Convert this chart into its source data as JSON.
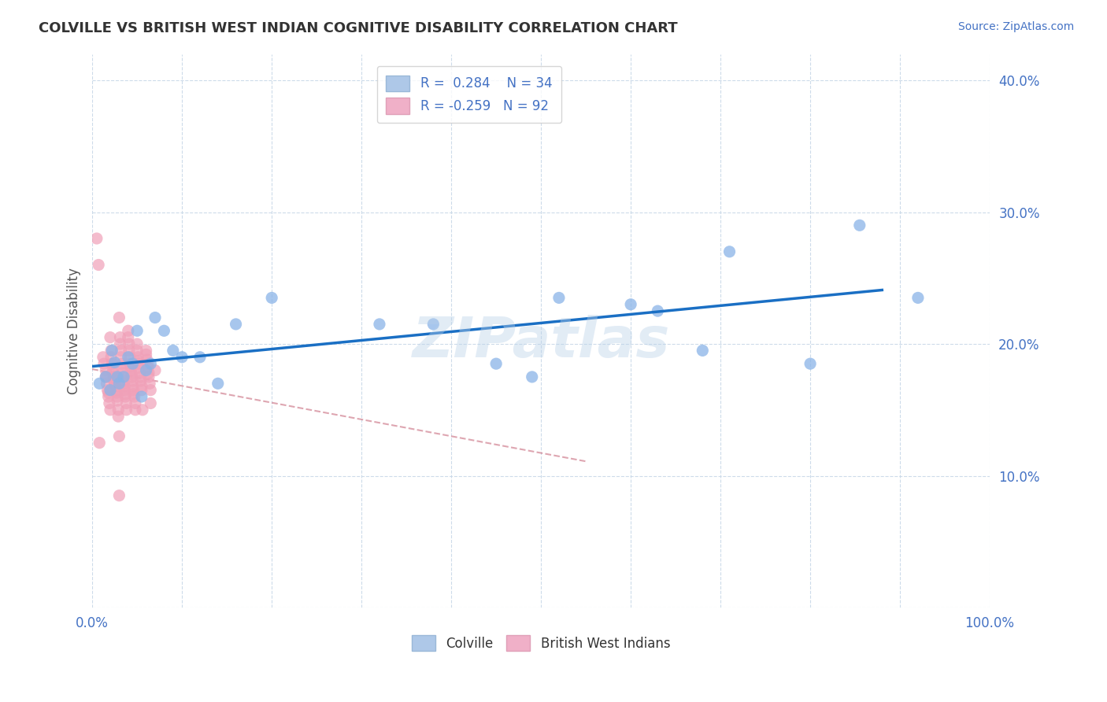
{
  "title": "COLVILLE VS BRITISH WEST INDIAN COGNITIVE DISABILITY CORRELATION CHART",
  "source": "Source: ZipAtlas.com",
  "xlabel": "",
  "ylabel": "Cognitive Disability",
  "xlim": [
    0.0,
    1.0
  ],
  "ylim": [
    0.0,
    0.42
  ],
  "xticks": [
    0.0,
    0.1,
    0.2,
    0.3,
    0.4,
    0.5,
    0.6,
    0.7,
    0.8,
    0.9,
    1.0
  ],
  "yticks": [
    0.0,
    0.1,
    0.2,
    0.3,
    0.4
  ],
  "xtick_labels": [
    "0.0%",
    "",
    "",
    "",
    "",
    "",
    "",
    "",
    "",
    "",
    "100.0%"
  ],
  "ytick_labels": [
    "",
    "10.0%",
    "20.0%",
    "30.0%",
    "40.0%"
  ],
  "colville_color": "#8ab4e8",
  "bwi_color": "#f0a0b8",
  "trendline_colville_color": "#1a6fc4",
  "trendline_bwi_color": "#e8a0b0",
  "r_colville": 0.284,
  "n_colville": 34,
  "r_bwi": -0.259,
  "n_bwi": 92,
  "watermark": "ZIPatlas",
  "colville_x": [
    0.008,
    0.015,
    0.02,
    0.022,
    0.025,
    0.028,
    0.03,
    0.035,
    0.04,
    0.045,
    0.05,
    0.055,
    0.06,
    0.065,
    0.07,
    0.08,
    0.09,
    0.1,
    0.12,
    0.14,
    0.16,
    0.2,
    0.32,
    0.38,
    0.45,
    0.49,
    0.52,
    0.6,
    0.63,
    0.68,
    0.71,
    0.8,
    0.855,
    0.92
  ],
  "colville_y": [
    0.17,
    0.175,
    0.165,
    0.195,
    0.186,
    0.175,
    0.17,
    0.175,
    0.19,
    0.185,
    0.21,
    0.16,
    0.18,
    0.185,
    0.22,
    0.21,
    0.195,
    0.19,
    0.19,
    0.17,
    0.215,
    0.235,
    0.215,
    0.215,
    0.185,
    0.175,
    0.235,
    0.23,
    0.225,
    0.195,
    0.27,
    0.185,
    0.29,
    0.235
  ],
  "bwi_x": [
    0.005,
    0.007,
    0.008,
    0.012,
    0.013,
    0.015,
    0.015,
    0.016,
    0.016,
    0.017,
    0.018,
    0.018,
    0.019,
    0.02,
    0.02,
    0.021,
    0.021,
    0.022,
    0.022,
    0.023,
    0.023,
    0.024,
    0.024,
    0.024,
    0.025,
    0.025,
    0.026,
    0.027,
    0.027,
    0.028,
    0.028,
    0.029,
    0.029,
    0.03,
    0.03,
    0.03,
    0.031,
    0.031,
    0.032,
    0.032,
    0.033,
    0.033,
    0.034,
    0.034,
    0.035,
    0.035,
    0.036,
    0.036,
    0.037,
    0.037,
    0.038,
    0.038,
    0.04,
    0.04,
    0.041,
    0.041,
    0.042,
    0.042,
    0.043,
    0.043,
    0.044,
    0.044,
    0.045,
    0.045,
    0.046,
    0.046,
    0.047,
    0.048,
    0.048,
    0.05,
    0.05,
    0.051,
    0.051,
    0.052,
    0.052,
    0.053,
    0.054,
    0.054,
    0.055,
    0.055,
    0.056,
    0.06,
    0.06,
    0.061,
    0.062,
    0.062,
    0.063,
    0.063,
    0.064,
    0.065,
    0.065,
    0.07
  ],
  "bwi_y": [
    0.28,
    0.26,
    0.125,
    0.19,
    0.185,
    0.18,
    0.175,
    0.175,
    0.17,
    0.165,
    0.163,
    0.16,
    0.155,
    0.15,
    0.205,
    0.195,
    0.19,
    0.185,
    0.185,
    0.18,
    0.178,
    0.175,
    0.175,
    0.172,
    0.17,
    0.17,
    0.168,
    0.165,
    0.163,
    0.16,
    0.157,
    0.15,
    0.145,
    0.13,
    0.085,
    0.22,
    0.205,
    0.2,
    0.195,
    0.19,
    0.185,
    0.182,
    0.178,
    0.175,
    0.172,
    0.17,
    0.168,
    0.165,
    0.162,
    0.16,
    0.155,
    0.15,
    0.21,
    0.205,
    0.2,
    0.195,
    0.19,
    0.185,
    0.183,
    0.18,
    0.177,
    0.175,
    0.172,
    0.168,
    0.165,
    0.162,
    0.16,
    0.155,
    0.15,
    0.2,
    0.195,
    0.19,
    0.187,
    0.185,
    0.182,
    0.178,
    0.175,
    0.172,
    0.168,
    0.165,
    0.15,
    0.195,
    0.192,
    0.188,
    0.185,
    0.182,
    0.178,
    0.175,
    0.17,
    0.165,
    0.155,
    0.18
  ]
}
